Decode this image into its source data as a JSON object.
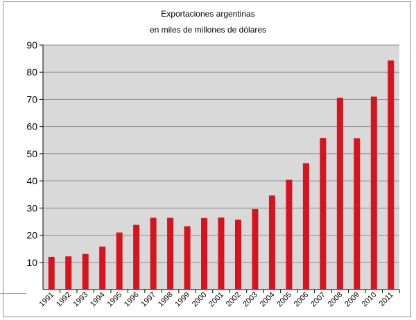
{
  "chart_data": {
    "type": "bar",
    "title": "Exportaciones argentinas",
    "subtitle": "en miles de millones de dólares",
    "xlabel": "",
    "ylabel": "",
    "categories": [
      "1991",
      "1992",
      "1993",
      "1994",
      "1995",
      "1996",
      "1997",
      "1998",
      "1999",
      "2000",
      "2001",
      "2002",
      "2003",
      "2004",
      "2005",
      "2006",
      "2007",
      "2008",
      "2009",
      "2010",
      "2011"
    ],
    "values": [
      12.0,
      12.2,
      13.1,
      15.8,
      21.0,
      23.8,
      26.4,
      26.4,
      23.3,
      26.3,
      26.5,
      25.7,
      29.6,
      34.6,
      40.4,
      46.5,
      55.8,
      70.6,
      55.7,
      71.0,
      84.3
    ],
    "ylim": [
      0,
      90
    ],
    "yticks": [
      10,
      20,
      30,
      40,
      50,
      60,
      70,
      80,
      90
    ],
    "grid": true,
    "legend": "none",
    "colors": {
      "bar": "#d7141e",
      "plot_bg": "#d9d9d9",
      "grid": "#8c8c8c"
    }
  }
}
